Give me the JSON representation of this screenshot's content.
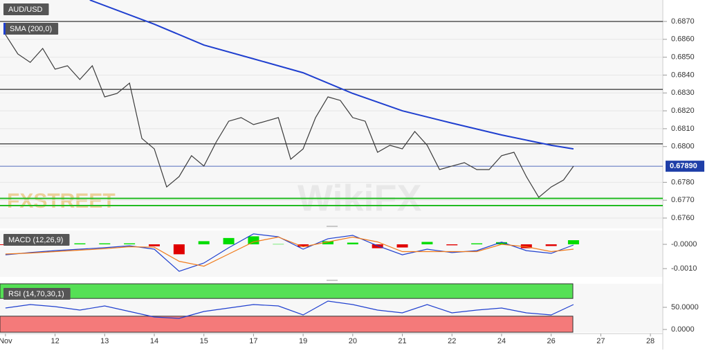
{
  "chart_data": [
    {
      "type": "line",
      "title": "AUD/USD",
      "watermark": "FXSTREET",
      "watermark2": "WikiFX",
      "x": [
        0,
        0.25,
        0.5,
        0.75,
        1,
        1.25,
        1.5,
        1.75,
        2,
        2.25,
        2.5,
        2.75,
        3,
        3.25,
        3.5,
        3.75,
        4,
        4.25,
        4.5,
        4.75,
        5,
        5.25,
        5.5,
        5.75,
        6,
        6.25,
        6.5,
        6.75,
        7,
        7.25,
        7.5,
        7.75,
        8,
        8.25,
        8.5,
        8.75,
        9,
        9.25,
        9.5,
        9.75,
        10,
        10.25,
        10.5,
        10.75,
        11,
        11.25,
        11.45
      ],
      "xlim": [
        -0.11,
        13.25
      ],
      "xticks": [
        {
          "value": 0,
          "label": "Nov"
        },
        {
          "value": 1,
          "label": "12"
        },
        {
          "value": 2,
          "label": "13"
        },
        {
          "value": 3,
          "label": "14"
        },
        {
          "value": 4,
          "label": "15"
        },
        {
          "value": 5,
          "label": "17"
        },
        {
          "value": 6,
          "label": "19"
        },
        {
          "value": 7,
          "label": "20"
        },
        {
          "value": 8,
          "label": "21"
        },
        {
          "value": 9,
          "label": "22"
        },
        {
          "value": 10,
          "label": "24"
        },
        {
          "value": 11,
          "label": "26"
        },
        {
          "value": 12,
          "label": "27"
        },
        {
          "value": 13,
          "label": "28"
        }
      ],
      "ylim": [
        0.67542,
        0.6882
      ],
      "yticks": [
        {
          "value": 0.687,
          "label": "0.6870"
        },
        {
          "value": 0.686,
          "label": "0.6860"
        },
        {
          "value": 0.685,
          "label": "0.6850"
        },
        {
          "value": 0.684,
          "label": "0.6840"
        },
        {
          "value": 0.683,
          "label": "0.6830"
        },
        {
          "value": 0.682,
          "label": "0.6820"
        },
        {
          "value": 0.681,
          "label": "0.6810"
        },
        {
          "value": 0.68,
          "label": "0.6800"
        },
        {
          "value": 0.678,
          "label": "0.6780"
        },
        {
          "value": 0.677,
          "label": "0.6770"
        },
        {
          "value": 0.676,
          "label": "0.6760"
        }
      ],
      "grid": true,
      "levels": [
        {
          "value": 0.687,
          "color": "#000000"
        },
        {
          "value": 0.6832,
          "color": "#000000"
        },
        {
          "value": 0.68015,
          "color": "#000000"
        },
        {
          "value": 0.6771,
          "color": "#22bb22"
        },
        {
          "value": 0.6767,
          "color": "#22bb22"
        }
      ],
      "last_price": {
        "value": 0.6789,
        "label": "0.67890",
        "color": "#1f3fa8"
      },
      "series": [
        {
          "color": "#3a3a3a",
          "values": [
            0.68626,
            0.68518,
            0.68471,
            0.68549,
            0.68433,
            0.68452,
            0.68375,
            0.68452,
            0.68278,
            0.68297,
            0.68355,
            0.68045,
            0.67987,
            0.67774,
            0.67832,
            0.67949,
            0.67891,
            0.68026,
            0.68142,
            0.68162,
            0.68123,
            0.68142,
            0.68162,
            0.67929,
            0.67987,
            0.68162,
            0.68278,
            0.68258,
            0.68162,
            0.68142,
            0.67968,
            0.68007,
            0.67987,
            0.68084,
            0.68007,
            0.67871,
            0.67891,
            0.6791,
            0.67871,
            0.67871,
            0.67949,
            0.67968,
            0.67832,
            0.67716,
            0.67774,
            0.67813,
            0.6789
          ]
        },
        {
          "name": "SMA (200,0)",
          "color": "#1f3fcf",
          "x": [
            1.7,
            3,
            4,
            5,
            6,
            7,
            8,
            9,
            10,
            11,
            11.45
          ],
          "values": [
            0.6882,
            0.68685,
            0.68568,
            0.68491,
            0.68413,
            0.68297,
            0.682,
            0.68131,
            0.68065,
            0.68007,
            0.67987
          ]
        }
      ]
    },
    {
      "type": "bar",
      "title": "MACD (12,26,9)",
      "x": [
        0,
        0.5,
        1,
        1.5,
        2,
        2.5,
        3,
        3.5,
        4,
        4.5,
        5,
        5.5,
        6,
        6.5,
        7,
        7.5,
        8,
        8.5,
        9,
        9.5,
        10,
        10.5,
        11,
        11.45
      ],
      "ylim": [
        -0.00134,
        0.00057
      ],
      "yticks": [
        {
          "value": 0,
          "label": "-0.0000"
        },
        {
          "value": -0.001,
          "label": "-0.0010"
        }
      ],
      "series": [
        {
          "kind": "bar",
          "up_color": "#00dd00",
          "down_color": "#e00000",
          "values": [
            -3e-05,
            2e-05,
            4e-05,
            4e-05,
            4e-05,
            4e-05,
            -8e-05,
            -0.00041,
            0.00013,
            0.00026,
            0.00033,
            1e-05,
            -0.0001,
            0.00013,
            7e-05,
            -0.00016,
            -0.00013,
            0.0001,
            -4e-05,
            4e-05,
            9e-05,
            -0.00016,
            -7e-05,
            0.00017
          ]
        },
        {
          "kind": "line",
          "color": "#1f3fcf",
          "values": [
            -0.00043,
            -0.00034,
            -0.00026,
            -0.0002,
            -0.00014,
            -6e-05,
            -0.0002,
            -0.00111,
            -0.00077,
            -0.00014,
            0.00043,
            0.00031,
            -0.0002,
            0.00023,
            0.00037,
            -6e-05,
            -0.00043,
            -0.0002,
            -0.00034,
            -0.00026,
            9e-05,
            -0.00026,
            -0.00037,
            -3e-05
          ]
        },
        {
          "kind": "line",
          "color": "#f07a1a",
          "values": [
            -0.0004,
            -0.00036,
            -0.0003,
            -0.00024,
            -0.00018,
            -0.0001,
            -0.00012,
            -0.0007,
            -0.0009,
            -0.0004,
            0.0001,
            0.0003,
            -0.0001,
            0.0001,
            0.0003,
            0.0001,
            -0.0003,
            -0.0003,
            -0.0003,
            -0.0003,
            0,
            -0.0001,
            -0.0003,
            -0.0002
          ]
        }
      ]
    },
    {
      "type": "line",
      "title": "RSI (14,70,30,1)",
      "x": [
        0,
        0.5,
        1,
        1.5,
        2,
        2.5,
        3,
        3.5,
        4,
        4.5,
        5,
        5.5,
        6,
        6.5,
        7,
        7.5,
        8,
        8.5,
        9,
        9.5,
        10,
        10.5,
        11,
        11.45
      ],
      "ylim": [
        -6.25,
        103.1
      ],
      "yticks": [
        {
          "value": 50,
          "label": "50.0000"
        },
        {
          "value": 0,
          "label": "0.0000"
        }
      ],
      "overbought": {
        "value": 70,
        "color": "#55e055"
      },
      "oversold": {
        "value": 30,
        "color": "#f47a7a"
      },
      "series": [
        {
          "color": "#1f3fcf",
          "values": [
            48.4,
            56.3,
            51.6,
            43.8,
            53.1,
            40.6,
            28.1,
            25,
            40.6,
            48.4,
            56.3,
            53.1,
            32.8,
            64.1,
            56.3,
            43.8,
            37.5,
            56.3,
            37.5,
            43.8,
            48.4,
            37.5,
            32.8,
            56.3
          ]
        }
      ]
    }
  ]
}
